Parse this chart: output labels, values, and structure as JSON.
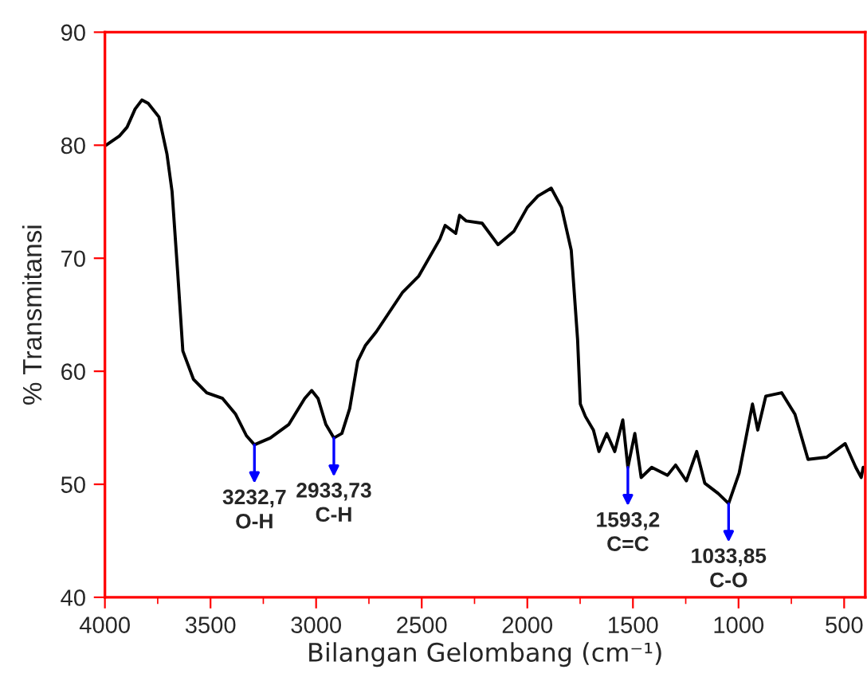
{
  "chart_data": {
    "type": "line",
    "xlabel": "Bilangan Gelombang (cm⁻¹)",
    "ylabel": "% Transmitansi",
    "xlim": [
      4000,
      400
    ],
    "ylim": [
      40,
      90
    ],
    "xticks": [
      4000,
      {
        "value": 3750,
        "label": null
      },
      3500,
      {
        "value": 3250,
        "label": null
      },
      3000,
      {
        "value": 2750,
        "label": null
      },
      2500,
      {
        "value": 2250,
        "label": null
      },
      2000,
      {
        "value": 1750,
        "label": null
      },
      1500,
      {
        "value": 1250,
        "label": null
      },
      1000,
      {
        "value": 750,
        "label": null
      },
      500
    ],
    "yticks": [
      40,
      50,
      60,
      70,
      80,
      90
    ],
    "grid": false,
    "legend": false,
    "marker": "none",
    "line_style": "solid",
    "series": [
      {
        "color": "#000000",
        "x": [
          3995,
          3932,
          3895,
          3857,
          3825,
          3795,
          3744,
          3706,
          3682,
          3656,
          3631,
          3581,
          3518,
          3443,
          3381,
          3330,
          3292,
          3217,
          3129,
          3054,
          3021,
          2991,
          2954,
          2916,
          2878,
          2841,
          2803,
          2766,
          2715,
          2590,
          2515,
          2414,
          2389,
          2339,
          2321,
          2289,
          2214,
          2139,
          2063,
          2000,
          1950,
          1887,
          1838,
          1792,
          1762,
          1749,
          1725,
          1687,
          1661,
          1624,
          1586,
          1548,
          1524,
          1491,
          1461,
          1411,
          1336,
          1298,
          1247,
          1198,
          1160,
          1097,
          1047,
          997,
          934,
          909,
          871,
          796,
          733,
          671,
          583,
          495,
          445,
          419,
          410
        ],
        "values": [
          80.0,
          80.8,
          81.6,
          83.2,
          84.0,
          83.7,
          82.5,
          79.2,
          75.9,
          68.9,
          61.8,
          59.3,
          58.1,
          57.6,
          56.2,
          54.3,
          53.5,
          54.1,
          55.3,
          57.6,
          58.3,
          57.6,
          55.3,
          54.1,
          54.5,
          56.7,
          60.9,
          62.3,
          63.5,
          67.0,
          68.4,
          71.7,
          72.9,
          72.2,
          73.8,
          73.3,
          73.1,
          71.2,
          72.4,
          74.5,
          75.5,
          76.2,
          74.5,
          70.7,
          62.8,
          57.1,
          56.0,
          54.8,
          52.9,
          54.5,
          52.9,
          55.7,
          51.5,
          54.5,
          50.6,
          51.5,
          50.8,
          51.7,
          50.3,
          52.9,
          50.1,
          49.2,
          48.3,
          51.0,
          57.1,
          54.8,
          57.8,
          58.1,
          56.2,
          52.2,
          52.4,
          53.6,
          51.5,
          50.6,
          51.5
        ]
      }
    ],
    "annotations": [
      {
        "text": "3232,7\nO-H",
        "x": 3292,
        "y": 53.5
      },
      {
        "text": "2933,73\nC-H",
        "x": 2916,
        "y": 54.1
      },
      {
        "text": "1593,2\nC=C",
        "x": 1524,
        "y": 51.5
      },
      {
        "text": "1033,85\nC-O",
        "x": 1047,
        "y": 48.3
      }
    ]
  }
}
